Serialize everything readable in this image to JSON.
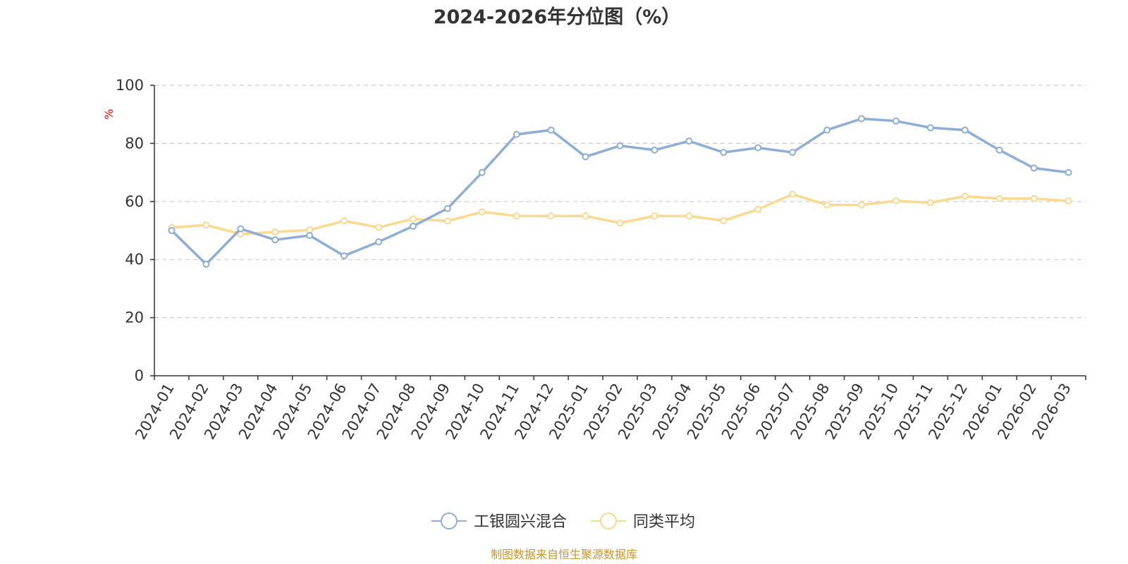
{
  "chart_data": {
    "type": "line",
    "title": "2024-2026年分位图（%）",
    "ylabel": "%",
    "ylim": [
      0,
      100
    ],
    "yticks": [
      0,
      20,
      40,
      60,
      80,
      100
    ],
    "grid": true,
    "legend_position": "bottom-center",
    "x": [
      "2024-01",
      "2024-02",
      "2024-03",
      "2024-04",
      "2024-05",
      "2024-06",
      "2024-07",
      "2024-08",
      "2024-09",
      "2024-10",
      "2024-11",
      "2024-12",
      "2025-01",
      "2025-02",
      "2025-03",
      "2025-04",
      "2025-05",
      "2025-06",
      "2025-07",
      "2025-08",
      "2025-09",
      "2025-10",
      "2025-11",
      "2025-12",
      "2026-01",
      "2026-02",
      "2026-03"
    ],
    "series": [
      {
        "name": "工银圆兴混合",
        "color": "#8eaed8",
        "values": [
          50.0,
          38.4,
          50.6,
          46.8,
          48.3,
          41.3,
          46.1,
          51.5,
          57.6,
          70.0,
          83.1,
          84.6,
          75.4,
          79.2,
          77.7,
          80.8,
          76.9,
          78.5,
          76.9,
          84.6,
          88.5,
          87.7,
          85.4,
          84.6,
          77.7,
          71.5,
          70.0
        ]
      },
      {
        "name": "同类平均",
        "color": "#fbd98e",
        "values": [
          51.0,
          51.9,
          48.8,
          49.5,
          50.2,
          53.3,
          51.1,
          54.0,
          53.3,
          56.4,
          55.0,
          55.0,
          55.0,
          52.6,
          55.0,
          55.0,
          53.4,
          57.3,
          62.5,
          58.8,
          58.8,
          60.2,
          59.6,
          61.8,
          61.0,
          61.0,
          60.2
        ]
      }
    ],
    "axis_color": "#333333",
    "grid_color": "#cccccc",
    "unit_color": "#ff0000"
  },
  "footer": {
    "source": "制图数据来自恒生聚源数据库",
    "color": "#c8962e"
  }
}
